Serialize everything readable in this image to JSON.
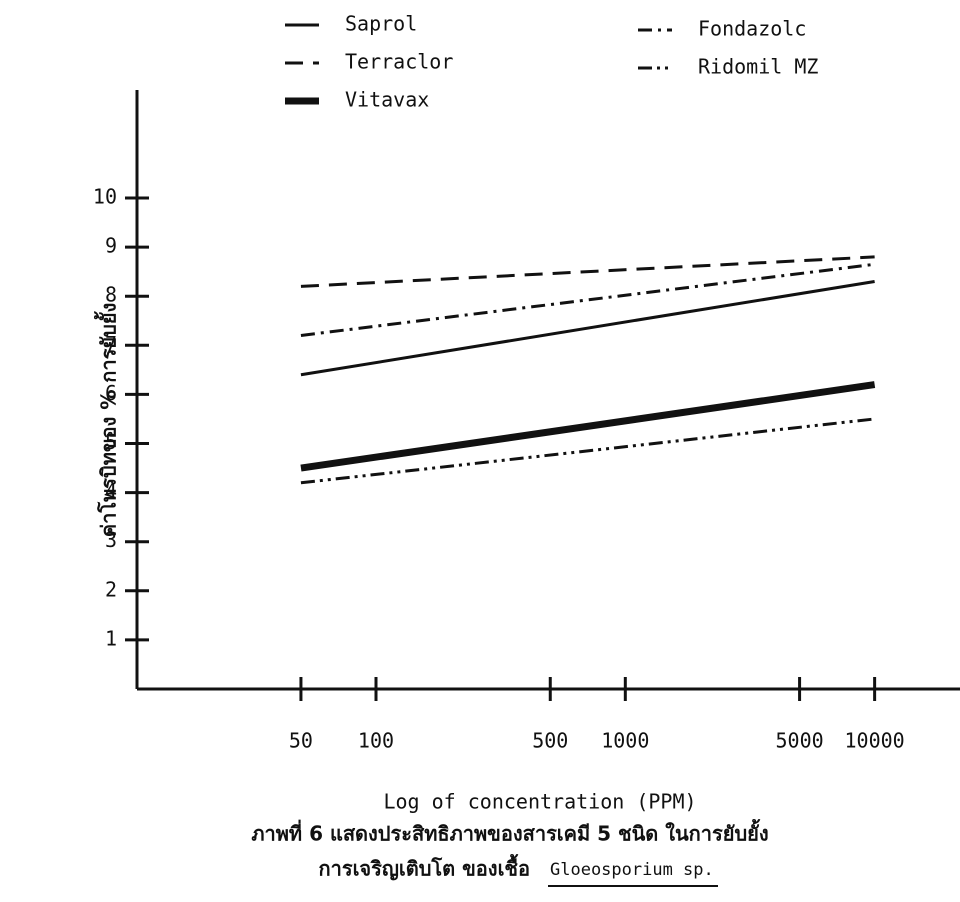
{
  "chart_data": {
    "type": "line",
    "xlabel": "Log of concentration (PPM)",
    "ylabel": "ค่าโพรบิทของ % การยับยั้ง",
    "caption_line1": "ภาพที่ 6 แสดงประสิทธิภาพของสารเคมี 5 ชนิด ในการยับยั้ง",
    "caption_line2": "การเจริญเติบโต ของเชื้อ",
    "organism": "Gloeosporium sp.",
    "xscale": "log",
    "x": [
      50,
      10000
    ],
    "xlim": [
      11,
      22000
    ],
    "xticks": [
      50,
      100,
      500,
      1000,
      5000,
      10000
    ],
    "ylim": [
      0,
      12.2
    ],
    "yticks": [
      1,
      2,
      3,
      4,
      5,
      6,
      7,
      8,
      9,
      10
    ],
    "grid": false,
    "series": [
      {
        "name": "Saprol",
        "color": "#111111",
        "dash": "solid",
        "linewidth": 3,
        "values": [
          6.4,
          8.3
        ]
      },
      {
        "name": "Terraclor",
        "color": "#111111",
        "dash": "dashed",
        "linewidth": 3,
        "values": [
          8.2,
          8.8
        ]
      },
      {
        "name": "Vitavax",
        "color": "#111111",
        "dash": "solid",
        "linewidth": 7,
        "values": [
          4.5,
          6.2
        ]
      },
      {
        "name": "Fondazolc",
        "color": "#111111",
        "dash": "dashdot",
        "linewidth": 3,
        "values": [
          7.2,
          8.65
        ]
      },
      {
        "name": "Ridomil MZ",
        "color": "#111111",
        "dash": "dashdotdot",
        "linewidth": 3,
        "values": [
          4.2,
          5.5
        ]
      }
    ]
  }
}
